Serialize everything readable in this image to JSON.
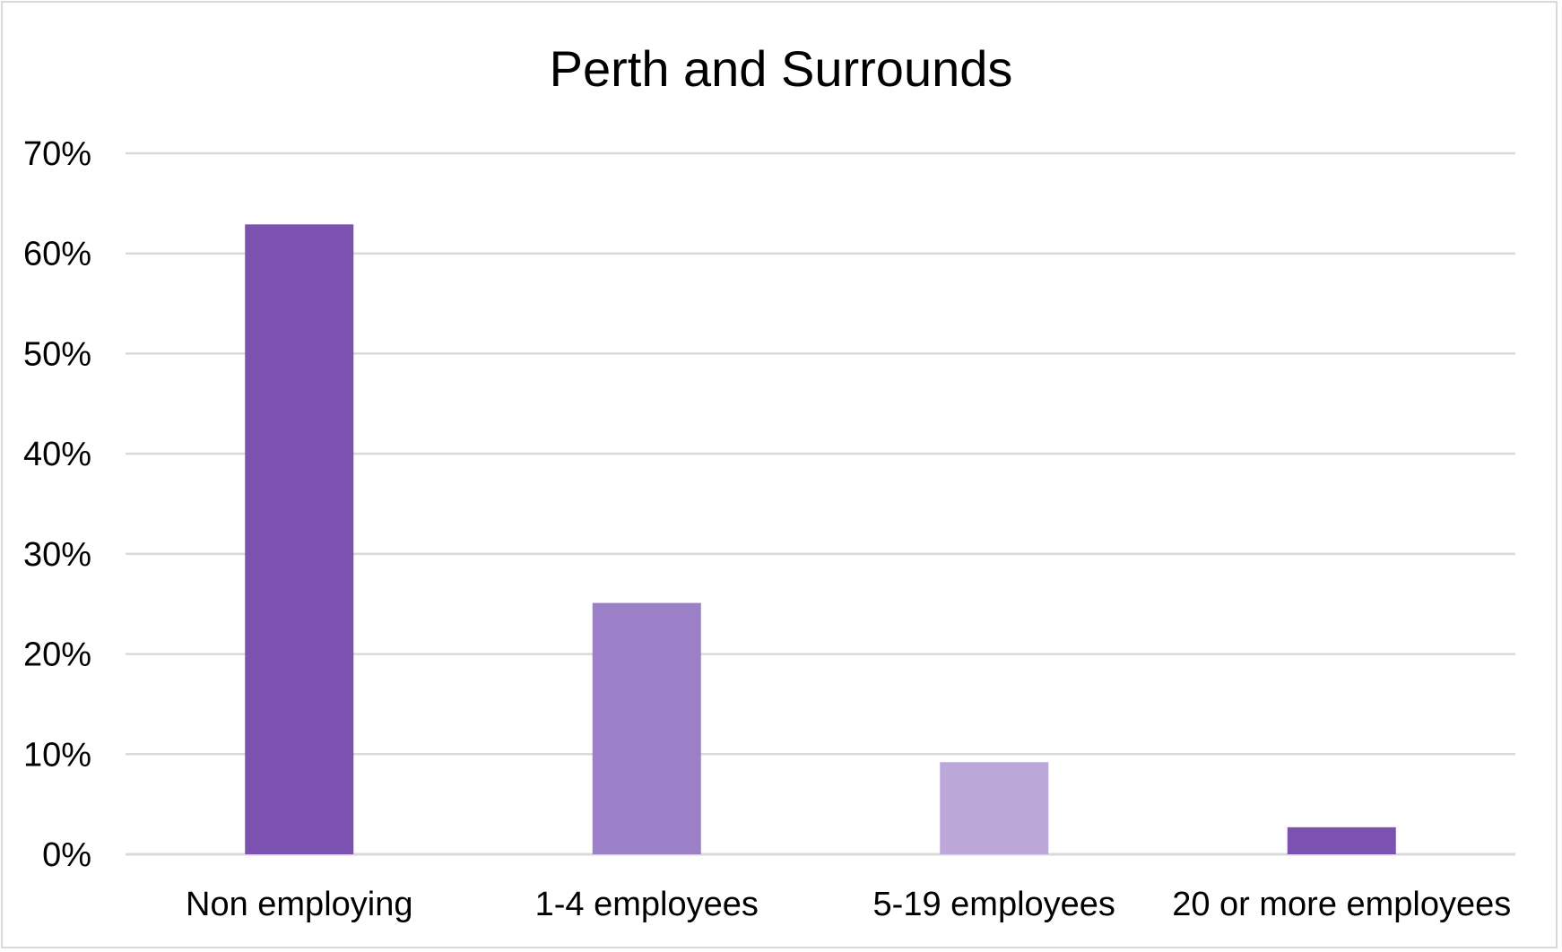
{
  "chart_data": {
    "type": "bar",
    "title": "Perth and Surrounds",
    "xlabel": "",
    "ylabel": "",
    "categories": [
      "Non employing",
      "1-4 employees",
      "5-19 employees",
      "20 or more employees"
    ],
    "values": [
      62.9,
      25.1,
      9.2,
      2.7
    ],
    "value_unit": "%",
    "ylim": [
      0,
      70
    ],
    "yticks": [
      0,
      10,
      20,
      30,
      40,
      50,
      60,
      70
    ],
    "ytick_labels": [
      "0%",
      "10%",
      "20%",
      "30%",
      "40%",
      "50%",
      "60%",
      "70%"
    ],
    "bar_colors": [
      "#7b52b0",
      "#9b80c8",
      "#bba8d8",
      "#7b52b0"
    ],
    "grid": true,
    "legend": "none"
  }
}
